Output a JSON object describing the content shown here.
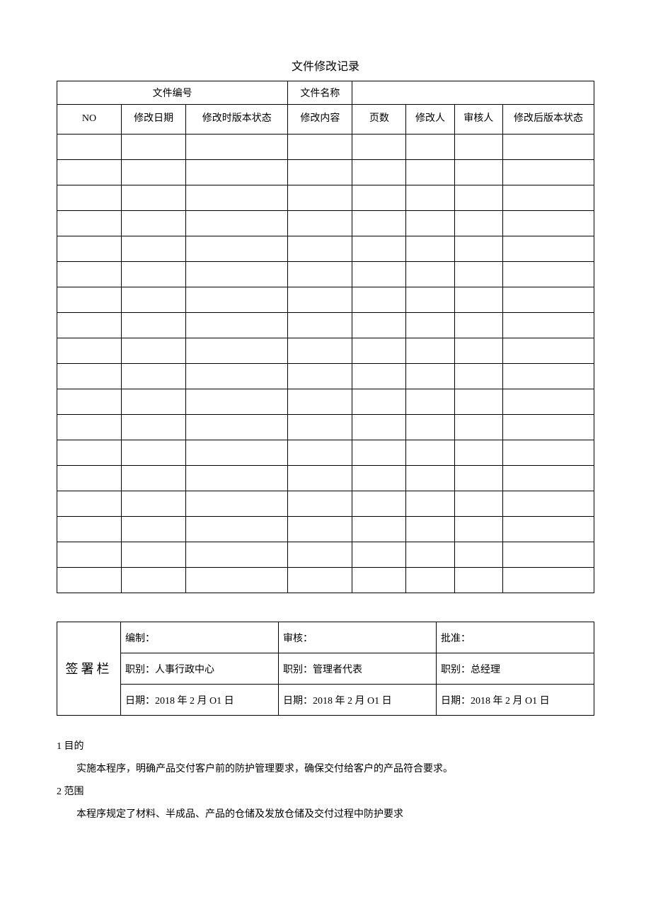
{
  "title": "文件修改记录",
  "table1": {
    "header1": {
      "docNumLabel": "文件编号",
      "docNameLabel": "文件名称"
    },
    "columns": {
      "no": "NO",
      "date": "修改日期",
      "versionBefore": "修改时版本状态",
      "content": "修改内容",
      "pages": "页数",
      "editor": "修改人",
      "reviewer": "审核人",
      "versionAfter": "修改后版本状态"
    },
    "emptyRowCount": 18
  },
  "signature": {
    "label": "签署栏",
    "cols": {
      "prepare": {
        "role": "编制：",
        "position": "职别：人事行政中心",
        "date": "日期：2018 年 2 月 O1 日"
      },
      "review": {
        "role": "审核：",
        "position": "职别：管理者代表",
        "date": "日期：2018 年 2 月 O1 日"
      },
      "approve": {
        "role": "批准：",
        "position": "职别：总经理",
        "date": "日期：2018 年 2 月 O1 日"
      }
    }
  },
  "body": {
    "section1Title": "1 目的",
    "section1Text": "实施本程序，明确产品交付客户前的防护管理要求，确保交付给客户的产品符合要求。",
    "section2Title": "2 范围",
    "section2Text": "本程序规定了材料、半成品、产品的仓储及发放仓储及交付过程中防护要求"
  }
}
